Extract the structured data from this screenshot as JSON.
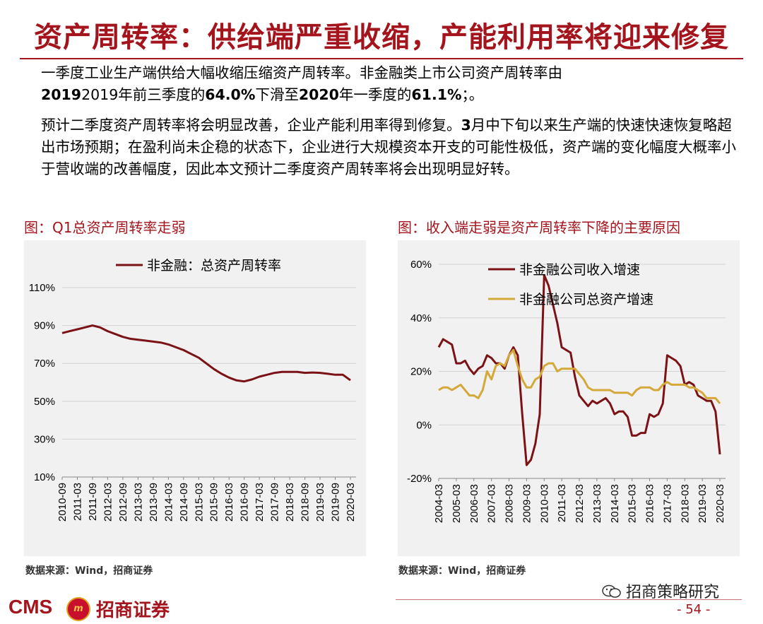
{
  "title": "资产周转率：供给端严重收缩，产能利用率将迎来修复",
  "paragraph1": {
    "line1": "一季度工业生产端供给大幅收缩压缩资产周转率。非金融类上市公司资产周转率由",
    "line2_pre": "2019年前三季度的",
    "line2_v1": "64.0%",
    "line2_mid": "下滑至",
    "line2_year": "2020",
    "line2_mid2": "年一季度的",
    "line2_v2": "61.1%",
    "line2_end": "；。"
  },
  "paragraph2": {
    "pre": "预计二季度资产周转率将会明显改善，企业产能利用率得到修复。",
    "bold": "3",
    "rest": "月中下旬以来生产端的快速快速恢复略超出市场预期；在盈利尚未企稳的状态下，企业进行大规模资本开支的可能性极低，资产端的变化幅度大概率小于营收端的改善幅度，因此本文预计二季度资产周转率将会出现明显好转。"
  },
  "figure1": {
    "title": "图：Q1总资产周转率走弱",
    "source": "数据来源：Wind，招商证券"
  },
  "figure2": {
    "title": "图：收入端走弱是资产周转率下降的主要原因",
    "source": "数据来源：Wind，招商证券"
  },
  "footer": {
    "logo_text": "CMS",
    "logo_badge": "m",
    "logo_name": "招商证券",
    "wechat": "招商策略研究",
    "page": "- 54 -"
  },
  "colors": {
    "brand": "#a4141c",
    "series_dark": "#7b1216",
    "series_gold": "#d4a93a",
    "panel_bg": "#f1f1f1"
  },
  "chart_data": [
    {
      "type": "line",
      "legend_position": "top",
      "ylim": [
        0.1,
        1.1
      ],
      "yticks": [
        0.1,
        0.3,
        0.5,
        0.7,
        0.9,
        1.1
      ],
      "ytick_labels": [
        "10%",
        "30%",
        "50%",
        "70%",
        "90%",
        "110%"
      ],
      "xtick_labels": [
        "2010-09",
        "2011-03",
        "2011-09",
        "2012-03",
        "2012-09",
        "2013-03",
        "2013-09",
        "2014-03",
        "2014-09",
        "2015-03",
        "2015-09",
        "2016-03",
        "2016-09",
        "2017-03",
        "2017-09",
        "2018-03",
        "2018-09",
        "2019-03",
        "2019-09",
        "2020-03"
      ],
      "series": [
        {
          "name": "非金融：总资产周转率",
          "x": [
            "2010-09",
            "2010-12",
            "2011-03",
            "2011-06",
            "2011-09",
            "2011-12",
            "2012-03",
            "2012-06",
            "2012-09",
            "2012-12",
            "2013-03",
            "2013-06",
            "2013-09",
            "2013-12",
            "2014-03",
            "2014-06",
            "2014-09",
            "2014-12",
            "2015-03",
            "2015-06",
            "2015-09",
            "2015-12",
            "2016-03",
            "2016-06",
            "2016-09",
            "2016-12",
            "2017-03",
            "2017-06",
            "2017-09",
            "2017-12",
            "2018-03",
            "2018-06",
            "2018-09",
            "2018-12",
            "2019-03",
            "2019-06",
            "2019-09",
            "2019-12",
            "2020-03"
          ],
          "values": [
            0.86,
            0.87,
            0.88,
            0.89,
            0.9,
            0.89,
            0.87,
            0.855,
            0.84,
            0.83,
            0.825,
            0.82,
            0.815,
            0.81,
            0.8,
            0.785,
            0.77,
            0.75,
            0.73,
            0.7,
            0.67,
            0.645,
            0.625,
            0.61,
            0.605,
            0.615,
            0.63,
            0.64,
            0.65,
            0.655,
            0.655,
            0.655,
            0.65,
            0.652,
            0.65,
            0.645,
            0.64,
            0.64,
            0.611
          ]
        }
      ]
    },
    {
      "type": "line",
      "legend_position": "top",
      "ylim": [
        -0.2,
        0.6
      ],
      "yticks": [
        -0.2,
        0.0,
        0.2,
        0.4,
        0.6
      ],
      "ytick_labels": [
        "-20%",
        "0%",
        "20%",
        "40%",
        "60%"
      ],
      "xtick_labels": [
        "2004-03",
        "2005-03",
        "2006-03",
        "2007-03",
        "2008-03",
        "2009-03",
        "2010-03",
        "2011-03",
        "2012-03",
        "2013-03",
        "2014-03",
        "2015-03",
        "2016-03",
        "2017-03",
        "2018-03",
        "2019-03",
        "2020-03"
      ],
      "series": [
        {
          "name": "非金融公司收入增速",
          "color": "#7b1216",
          "x": [
            "2004-03",
            "2004-06",
            "2004-09",
            "2004-12",
            "2005-03",
            "2005-06",
            "2005-09",
            "2005-12",
            "2006-03",
            "2006-06",
            "2006-09",
            "2006-12",
            "2007-03",
            "2007-06",
            "2007-09",
            "2007-12",
            "2008-03",
            "2008-06",
            "2008-09",
            "2008-12",
            "2009-03",
            "2009-06",
            "2009-09",
            "2009-12",
            "2010-03",
            "2010-06",
            "2010-09",
            "2010-12",
            "2011-03",
            "2011-06",
            "2011-09",
            "2011-12",
            "2012-03",
            "2012-06",
            "2012-09",
            "2012-12",
            "2013-03",
            "2013-06",
            "2013-09",
            "2013-12",
            "2014-03",
            "2014-06",
            "2014-09",
            "2014-12",
            "2015-03",
            "2015-06",
            "2015-09",
            "2015-12",
            "2016-03",
            "2016-06",
            "2016-09",
            "2016-12",
            "2017-03",
            "2017-06",
            "2017-09",
            "2017-12",
            "2018-03",
            "2018-06",
            "2018-09",
            "2018-12",
            "2019-03",
            "2019-06",
            "2019-09",
            "2019-12",
            "2020-03"
          ],
          "values": [
            0.29,
            0.32,
            0.31,
            0.3,
            0.23,
            0.23,
            0.24,
            0.21,
            0.19,
            0.21,
            0.22,
            0.26,
            0.25,
            0.23,
            0.23,
            0.21,
            0.26,
            0.29,
            0.26,
            0.04,
            -0.15,
            -0.13,
            -0.07,
            0.04,
            0.56,
            0.52,
            0.45,
            0.38,
            0.29,
            0.28,
            0.27,
            0.18,
            0.11,
            0.09,
            0.07,
            0.09,
            0.08,
            0.09,
            0.1,
            0.08,
            0.04,
            0.05,
            0.05,
            0.03,
            -0.04,
            -0.04,
            -0.03,
            -0.03,
            0.04,
            0.03,
            0.04,
            0.08,
            0.26,
            0.25,
            0.24,
            0.22,
            0.15,
            0.16,
            0.15,
            0.11,
            0.1,
            0.09,
            0.09,
            0.05,
            -0.11
          ]
        },
        {
          "name": "非金融公司总资产增速",
          "color": "#d4a93a",
          "x": [
            "2004-03",
            "2004-06",
            "2004-09",
            "2004-12",
            "2005-03",
            "2005-06",
            "2005-09",
            "2005-12",
            "2006-03",
            "2006-06",
            "2006-09",
            "2006-12",
            "2007-03",
            "2007-06",
            "2007-09",
            "2007-12",
            "2008-03",
            "2008-06",
            "2008-09",
            "2008-12",
            "2009-03",
            "2009-06",
            "2009-09",
            "2009-12",
            "2010-03",
            "2010-06",
            "2010-09",
            "2010-12",
            "2011-03",
            "2011-06",
            "2011-09",
            "2011-12",
            "2012-03",
            "2012-06",
            "2012-09",
            "2012-12",
            "2013-03",
            "2013-06",
            "2013-09",
            "2013-12",
            "2014-03",
            "2014-06",
            "2014-09",
            "2014-12",
            "2015-03",
            "2015-06",
            "2015-09",
            "2015-12",
            "2016-03",
            "2016-06",
            "2016-09",
            "2016-12",
            "2017-03",
            "2017-06",
            "2017-09",
            "2017-12",
            "2018-03",
            "2018-06",
            "2018-09",
            "2018-12",
            "2019-03",
            "2019-06",
            "2019-09",
            "2019-12",
            "2020-03"
          ],
          "values": [
            0.13,
            0.14,
            0.14,
            0.13,
            0.14,
            0.15,
            0.13,
            0.11,
            0.11,
            0.1,
            0.13,
            0.2,
            0.17,
            0.22,
            0.23,
            0.22,
            0.26,
            0.28,
            0.22,
            0.17,
            0.14,
            0.14,
            0.17,
            0.18,
            0.22,
            0.23,
            0.23,
            0.2,
            0.21,
            0.21,
            0.21,
            0.21,
            0.19,
            0.17,
            0.14,
            0.13,
            0.13,
            0.13,
            0.13,
            0.13,
            0.12,
            0.12,
            0.12,
            0.12,
            0.11,
            0.13,
            0.14,
            0.14,
            0.14,
            0.13,
            0.13,
            0.15,
            0.16,
            0.15,
            0.15,
            0.15,
            0.15,
            0.14,
            0.14,
            0.13,
            0.12,
            0.1,
            0.1,
            0.1,
            0.08
          ]
        }
      ]
    }
  ]
}
